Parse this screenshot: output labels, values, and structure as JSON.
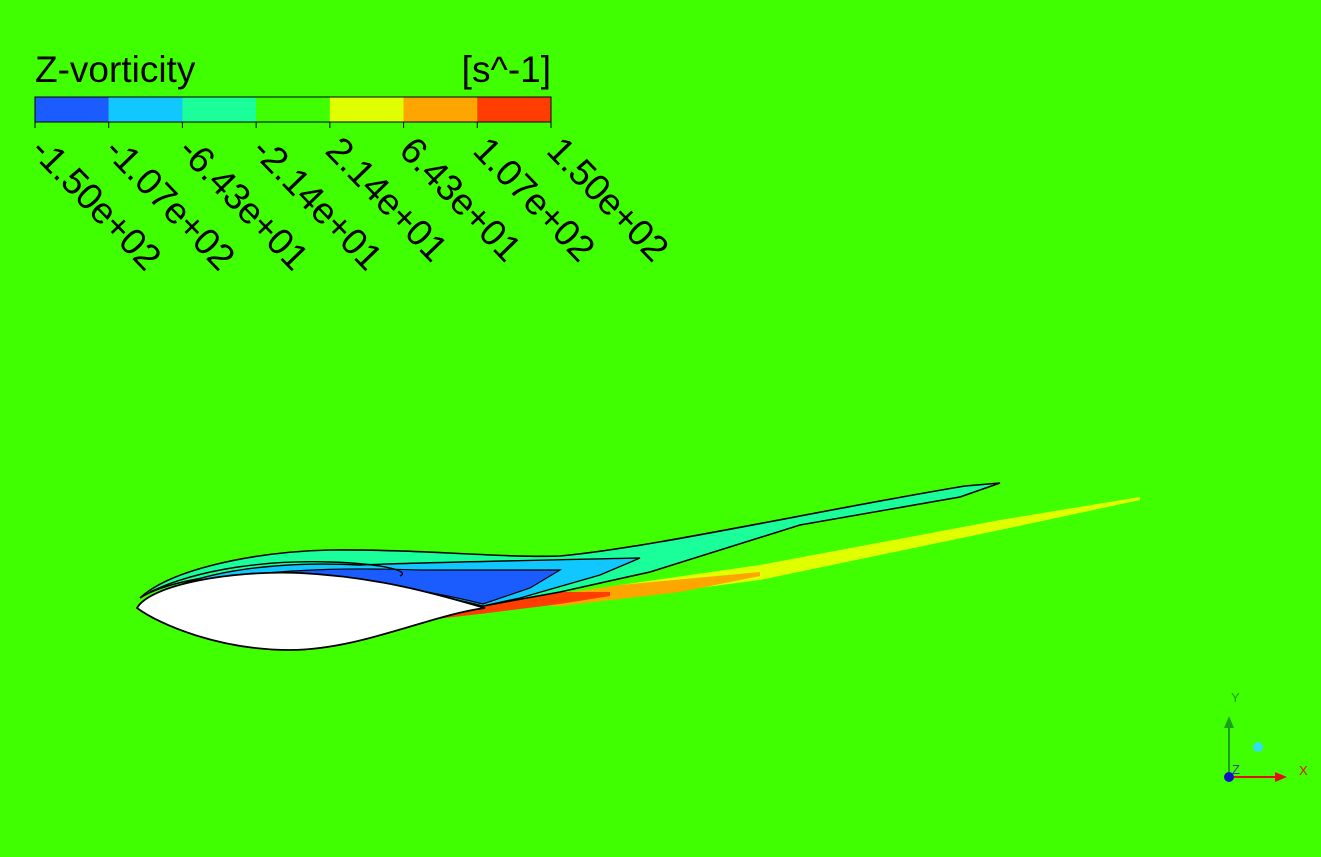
{
  "legend": {
    "title": "Z-vorticity",
    "unit": "[s^-1]",
    "ticks": [
      "-1.50e+02",
      "-1.07e+02",
      "-6.43e+01",
      "-2.14e+01",
      "2.14e+01",
      "6.43e+01",
      "1.07e+02",
      "1.50e+02"
    ],
    "colors": [
      "#1a5cff",
      "#10c8ff",
      "#1aff9a",
      "#40ff00",
      "#e0ff00",
      "#ffa500",
      "#ff3d00"
    ]
  },
  "triad": {
    "x": "X",
    "y": "Y",
    "z": "Z"
  }
}
